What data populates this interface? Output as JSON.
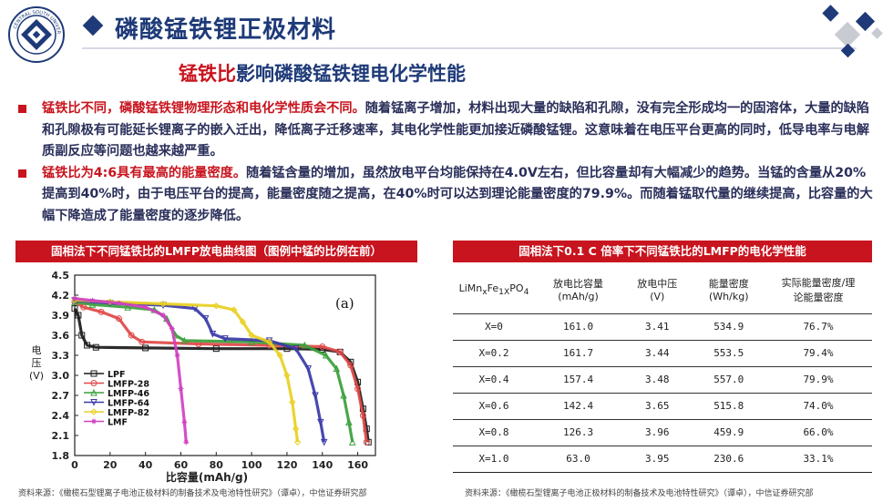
{
  "header": {
    "title": "磷酸锰铁锂正极材料",
    "logo_text": "CENTRAL SOUTH UNIVERSITY"
  },
  "subtitle": {
    "highlight": "锰铁比",
    "rest": "影响磷酸锰铁锂电化学性能"
  },
  "bullets": [
    {
      "lead": "锰铁比不同，磷酸锰铁锂物理形态和电化学性质会不同。",
      "body": "随着锰离子增加，材料出现大量的缺陷和孔隙，没有完全形成均一的固溶体，大量的缺陷和孔隙极有可能延长锂离子的嵌入迁出，降低离子迁移速率，其电化学性能更加接近磷酸锰锂。这意味着在电压平台更高的同时，低导电率与电解质副反应等问题也越来越严重。"
    },
    {
      "lead": "锰铁比为4:6具有最高的能量密度。",
      "body": "随着锰含量的增加，虽然放电平台均能保持在4.0V左右，但比容量却有大幅减少的趋势。当锰的含量从20%提高到40%时，由于电压平台的提高，能量密度随之提高，在40%时可以达到理论能量密度的79.9%。而随着锰取代量的继续提高，比容量的大幅下降造成了能量密度的逐步降低。"
    }
  ],
  "chart_panel": {
    "header": "固相法下不同锰铁比的LMFP放电曲线图（图例中锰的比例在前）",
    "source": "资料来源：《橄榄石型锂离子电池正极材料的制备技术及电池特性研究》（谭卓），中信证券研究部"
  },
  "table_panel": {
    "header": "固相法下0.1 C 倍率下不同锰铁比的LMFP的电化学性能",
    "source": "资料来源：《橄榄石型锂离子电池正极材料的制备技术及电池特性研究》（谭卓），中信证券研究部",
    "columns": [
      "LiMnxFe1xPO4",
      "放电比容量(mAh/g)",
      "放电中压(V)",
      "能量密度(Wh/kg)",
      "实际能量密度/理论能量密度"
    ],
    "col_header": {
      "formula": {
        "a": "LiMn",
        "b": "x",
        "c": "Fe",
        "d": "1X",
        "e": "PO",
        "f": "4"
      },
      "c1": [
        "放电比容量",
        "(mAh/g)"
      ],
      "c2": [
        "放电中压",
        "(V)"
      ],
      "c3": [
        "能量密度",
        "(Wh/kg)"
      ],
      "c4": [
        "实际能量密度/理",
        "论能量密度"
      ]
    },
    "rows": [
      [
        "X=0",
        "161.0",
        "3.41",
        "534.9",
        "76.7%"
      ],
      [
        "X=0.2",
        "161.7",
        "3.44",
        "553.5",
        "79.4%"
      ],
      [
        "X=0.4",
        "157.4",
        "3.48",
        "557.0",
        "79.9%"
      ],
      [
        "X=0.6",
        "142.4",
        "3.65",
        "515.8",
        "74.0%"
      ],
      [
        "X=0.8",
        "126.3",
        "3.96",
        "459.9",
        "66.0%"
      ],
      [
        "X=1.0",
        "63.0",
        "3.95",
        "230.6",
        "33.1%"
      ]
    ]
  },
  "chart_data": {
    "type": "line",
    "panel_label": "(a)",
    "xlabel": "比容量(mAh/g)",
    "ylabel": "电压(V)",
    "xlim": [
      0,
      170
    ],
    "ylim": [
      1.8,
      4.5
    ],
    "xticks": [
      "0",
      "20",
      "40",
      "60",
      "80",
      "100",
      "120",
      "140",
      "160"
    ],
    "yticks": [
      "1.8",
      "2.1",
      "2.4",
      "2.7",
      "3.0",
      "3.3",
      "3.6",
      "3.9",
      "4.2",
      "4.5"
    ],
    "legend_position": "bottom-left",
    "series": [
      {
        "name": "LPF",
        "color": "#1a1a1a",
        "marker": "square",
        "points": [
          [
            0,
            4.0
          ],
          [
            2,
            3.9
          ],
          [
            4,
            3.6
          ],
          [
            7,
            3.45
          ],
          [
            12,
            3.42
          ],
          [
            40,
            3.41
          ],
          [
            80,
            3.4
          ],
          [
            120,
            3.4
          ],
          [
            140,
            3.39
          ],
          [
            150,
            3.35
          ],
          [
            156,
            3.2
          ],
          [
            160,
            2.9
          ],
          [
            163,
            2.5
          ],
          [
            165,
            2.2
          ],
          [
            166,
            2.0
          ]
        ]
      },
      {
        "name": "LMFP-28",
        "color": "#e04848",
        "marker": "circle",
        "points": [
          [
            0,
            4.1
          ],
          [
            5,
            4.02
          ],
          [
            15,
            3.95
          ],
          [
            25,
            3.85
          ],
          [
            32,
            3.6
          ],
          [
            38,
            3.5
          ],
          [
            70,
            3.47
          ],
          [
            110,
            3.45
          ],
          [
            140,
            3.43
          ],
          [
            150,
            3.35
          ],
          [
            156,
            3.15
          ],
          [
            160,
            2.8
          ],
          [
            163,
            2.4
          ],
          [
            165,
            2.0
          ]
        ]
      },
      {
        "name": "LMFP-46",
        "color": "#3aa03a",
        "marker": "triangle",
        "points": [
          [
            0,
            4.1
          ],
          [
            10,
            4.06
          ],
          [
            30,
            4.02
          ],
          [
            45,
            3.98
          ],
          [
            52,
            3.85
          ],
          [
            57,
            3.6
          ],
          [
            62,
            3.52
          ],
          [
            100,
            3.5
          ],
          [
            130,
            3.45
          ],
          [
            142,
            3.3
          ],
          [
            148,
            3.1
          ],
          [
            152,
            2.7
          ],
          [
            155,
            2.3
          ],
          [
            157,
            2.0
          ]
        ]
      },
      {
        "name": "LMFP-64",
        "color": "#3a3aa8",
        "marker": "triangle-down",
        "points": [
          [
            0,
            4.12
          ],
          [
            20,
            4.08
          ],
          [
            50,
            4.05
          ],
          [
            68,
            4.0
          ],
          [
            74,
            3.85
          ],
          [
            78,
            3.62
          ],
          [
            85,
            3.55
          ],
          [
            110,
            3.52
          ],
          [
            125,
            3.4
          ],
          [
            132,
            3.1
          ],
          [
            136,
            2.7
          ],
          [
            139,
            2.3
          ],
          [
            141,
            2.0
          ]
        ]
      },
      {
        "name": "LMFP-82",
        "color": "#e8d020",
        "marker": "diamond",
        "points": [
          [
            0,
            4.13
          ],
          [
            20,
            4.1
          ],
          [
            50,
            4.07
          ],
          [
            80,
            4.04
          ],
          [
            90,
            3.98
          ],
          [
            95,
            3.8
          ],
          [
            100,
            3.6
          ],
          [
            110,
            3.5
          ],
          [
            116,
            3.3
          ],
          [
            120,
            3.0
          ],
          [
            123,
            2.6
          ],
          [
            125,
            2.2
          ],
          [
            126,
            2.0
          ]
        ]
      },
      {
        "name": "LMF",
        "color": "#d040c0",
        "marker": "star",
        "points": [
          [
            0,
            4.15
          ],
          [
            10,
            4.12
          ],
          [
            25,
            4.08
          ],
          [
            40,
            4.02
          ],
          [
            50,
            3.9
          ],
          [
            55,
            3.7
          ],
          [
            58,
            3.3
          ],
          [
            60,
            2.8
          ],
          [
            62,
            2.3
          ],
          [
            63,
            2.0
          ]
        ]
      }
    ]
  }
}
